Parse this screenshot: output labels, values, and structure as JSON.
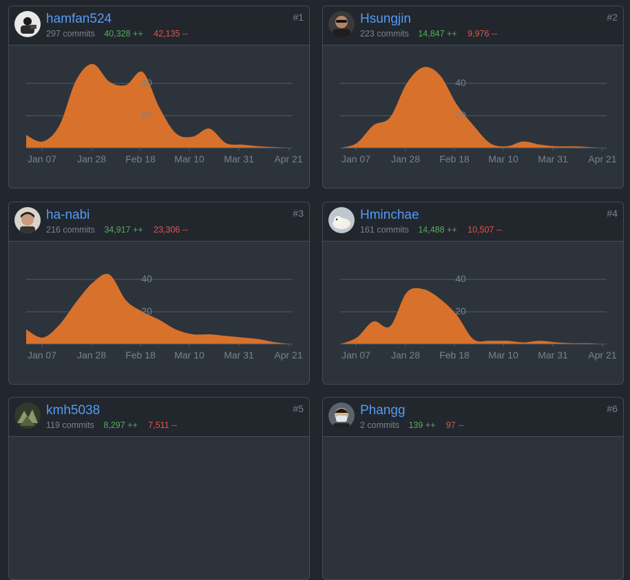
{
  "colors": {
    "background": "#22272e",
    "card": "#2d333b",
    "border": "#444c56",
    "name_link": "#539bf5",
    "additions": "#57ab5a",
    "deletions": "#e5534b",
    "area_fill": "#d8712b",
    "grid": "#545d68",
    "label": "#768390"
  },
  "contributors": [
    {
      "rank": "#1",
      "name": "hamfan524",
      "commits": "297 commits",
      "additions": "40,328 ++",
      "deletions": "42,135 --",
      "avatar_icon": "avatar-photo-icon",
      "chart_data": {
        "type": "area",
        "x_labels": [
          "Jan 07",
          "Jan 28",
          "Feb 18",
          "Mar 10",
          "Mar 31",
          "Apr 21"
        ],
        "y_labels": [
          "20",
          "40"
        ],
        "ylim": [
          0,
          55
        ],
        "grid": true,
        "values": [
          8,
          4,
          14,
          42,
          52,
          41,
          39,
          47,
          25,
          9,
          7,
          12,
          3,
          2,
          1,
          0.5,
          0
        ]
      }
    },
    {
      "rank": "#2",
      "name": "Hsungjin",
      "commits": "223 commits",
      "additions": "14,847 ++",
      "deletions": "9,976 --",
      "avatar_icon": "avatar-photo-icon",
      "chart_data": {
        "type": "area",
        "x_labels": [
          "Jan 07",
          "Jan 28",
          "Feb 18",
          "Mar 10",
          "Mar 31",
          "Apr 21"
        ],
        "y_labels": [
          "20",
          "40"
        ],
        "ylim": [
          0,
          55
        ],
        "grid": true,
        "values": [
          0,
          3,
          14,
          19,
          40,
          50,
          45,
          27,
          14,
          3,
          1,
          4,
          2,
          1,
          1,
          0.5,
          0
        ]
      }
    },
    {
      "rank": "#3",
      "name": "ha-nabi",
      "commits": "216 commits",
      "additions": "34,917 ++",
      "deletions": "23,306 --",
      "avatar_icon": "avatar-photo-icon",
      "chart_data": {
        "type": "area",
        "x_labels": [
          "Jan 07",
          "Jan 28",
          "Feb 18",
          "Mar 10",
          "Mar 31",
          "Apr 21"
        ],
        "y_labels": [
          "20",
          "40"
        ],
        "ylim": [
          0,
          55
        ],
        "grid": true,
        "values": [
          9,
          4,
          12,
          26,
          38,
          43,
          27,
          20,
          15,
          9,
          6,
          6,
          5,
          4,
          3,
          1,
          0
        ]
      }
    },
    {
      "rank": "#4",
      "name": "Hminchae",
      "commits": "161 commits",
      "additions": "14,488 ++",
      "deletions": "10,507 --",
      "avatar_icon": "avatar-photo-icon",
      "chart_data": {
        "type": "area",
        "x_labels": [
          "Jan 07",
          "Jan 28",
          "Feb 18",
          "Mar 10",
          "Mar 31",
          "Apr 21"
        ],
        "y_labels": [
          "20",
          "40"
        ],
        "ylim": [
          0,
          55
        ],
        "grid": true,
        "values": [
          0,
          4,
          14,
          11,
          32,
          34,
          28,
          18,
          3,
          2,
          2,
          1,
          2,
          1,
          0.5,
          0.5,
          0
        ]
      }
    },
    {
      "rank": "#5",
      "name": "kmh5038",
      "commits": "119 commits",
      "additions": "8,297 ++",
      "deletions": "7,511 --",
      "avatar_icon": "avatar-photo-icon",
      "chart_data": null
    },
    {
      "rank": "#6",
      "name": "Phangg",
      "commits": "2 commits",
      "additions": "139 ++",
      "deletions": "97 --",
      "avatar_icon": "avatar-photo-icon",
      "chart_data": null
    }
  ]
}
